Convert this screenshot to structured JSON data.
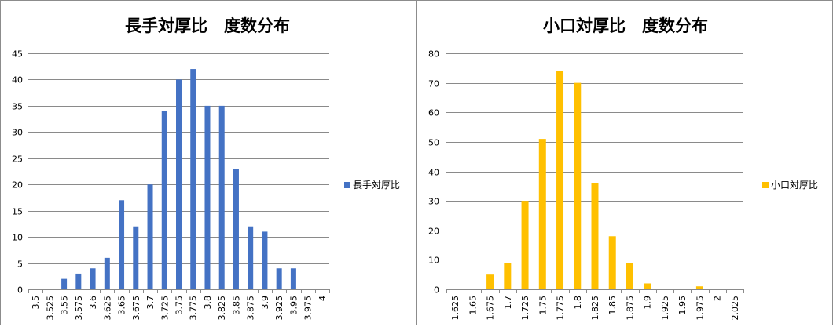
{
  "chart_data": [
    {
      "type": "bar",
      "title": "長手対厚比　度数分布",
      "categories": [
        "3.5",
        "3.525",
        "3.55",
        "3.575",
        "3.6",
        "3.625",
        "3.65",
        "3.675",
        "3.7",
        "3.725",
        "3.75",
        "3.775",
        "3.8",
        "3.825",
        "3.85",
        "3.875",
        "3.9",
        "3.925",
        "3.95",
        "3.975",
        "4"
      ],
      "series": [
        {
          "name": "長手対厚比",
          "values": [
            0,
            0,
            2,
            3,
            4,
            6,
            17,
            12,
            20,
            34,
            40,
            42,
            35,
            35,
            23,
            12,
            11,
            4,
            4,
            0,
            0
          ]
        }
      ],
      "ylim": [
        0,
        45
      ],
      "yticks": [
        0,
        5,
        10,
        15,
        20,
        25,
        30,
        35,
        40,
        45
      ],
      "xlabel": "",
      "ylabel": "",
      "grid": true,
      "legend": "right",
      "color": "#4472c4"
    },
    {
      "type": "bar",
      "title": "小口対厚比　度数分布",
      "categories": [
        "1.625",
        "1.65",
        "1.675",
        "1.7",
        "1.725",
        "1.75",
        "1.775",
        "1.8",
        "1.825",
        "1.85",
        "1.875",
        "1.9",
        "1.925",
        "1.95",
        "1.975",
        "2",
        "2.025"
      ],
      "series": [
        {
          "name": "小口対厚比",
          "values": [
            0,
            0,
            5,
            9,
            30,
            51,
            74,
            70,
            36,
            18,
            9,
            2,
            0,
            0,
            1,
            0,
            0
          ]
        }
      ],
      "ylim": [
        0,
        80
      ],
      "yticks": [
        0,
        10,
        20,
        30,
        40,
        50,
        60,
        70,
        80
      ],
      "xlabel": "",
      "ylabel": "",
      "grid": true,
      "legend": "right",
      "color": "#ffc000"
    }
  ]
}
